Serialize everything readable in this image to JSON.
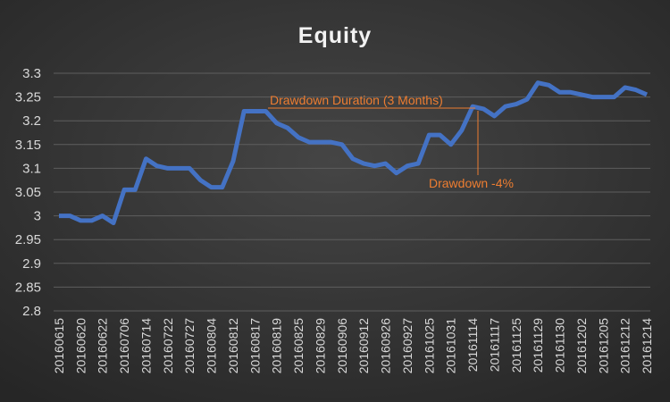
{
  "chart_data": {
    "type": "line",
    "title": "Equity",
    "categories": [
      "20160615",
      null,
      "20160620",
      null,
      "20160622",
      null,
      "20160706",
      null,
      "20160714",
      null,
      "20160722",
      null,
      "20160727",
      null,
      "20160804",
      null,
      "20160812",
      null,
      "20160817",
      null,
      "20160819",
      null,
      "20160825",
      null,
      "20160829",
      null,
      "20160906",
      null,
      "20160912",
      null,
      "20160926",
      null,
      "20160927",
      null,
      "20161025",
      null,
      "20161031",
      null,
      "20161114",
      null,
      "20161117",
      null,
      "20161125",
      null,
      "20161129",
      null,
      "20161130",
      null,
      "20161202",
      null,
      "20161205",
      null,
      "20161212",
      null,
      "20161214"
    ],
    "values": [
      3.0,
      3.0,
      2.99,
      2.99,
      3.0,
      2.985,
      3.055,
      3.055,
      3.12,
      3.105,
      3.1,
      3.1,
      3.1,
      3.075,
      3.06,
      3.06,
      3.115,
      3.22,
      3.22,
      3.22,
      3.195,
      3.185,
      3.165,
      3.155,
      3.155,
      3.155,
      3.15,
      3.12,
      3.11,
      3.105,
      3.11,
      3.09,
      3.105,
      3.11,
      3.17,
      3.17,
      3.15,
      3.18,
      3.23,
      3.225,
      3.21,
      3.23,
      3.235,
      3.245,
      3.28,
      3.275,
      3.26,
      3.26,
      3.255,
      3.25,
      3.25,
      3.25,
      3.27,
      3.265,
      3.255
    ],
    "color": "#4472c4",
    "ylim": [
      2.8,
      3.3
    ],
    "yticks": [
      2.8,
      2.85,
      2.9,
      2.95,
      3,
      3.05,
      3.1,
      3.15,
      3.2,
      3.25,
      3.3
    ],
    "grid": true,
    "annotations": [
      "Drawdown Duration (3 Months)",
      "Drawdown -4%"
    ],
    "annotation_color": "#ed7d31"
  }
}
